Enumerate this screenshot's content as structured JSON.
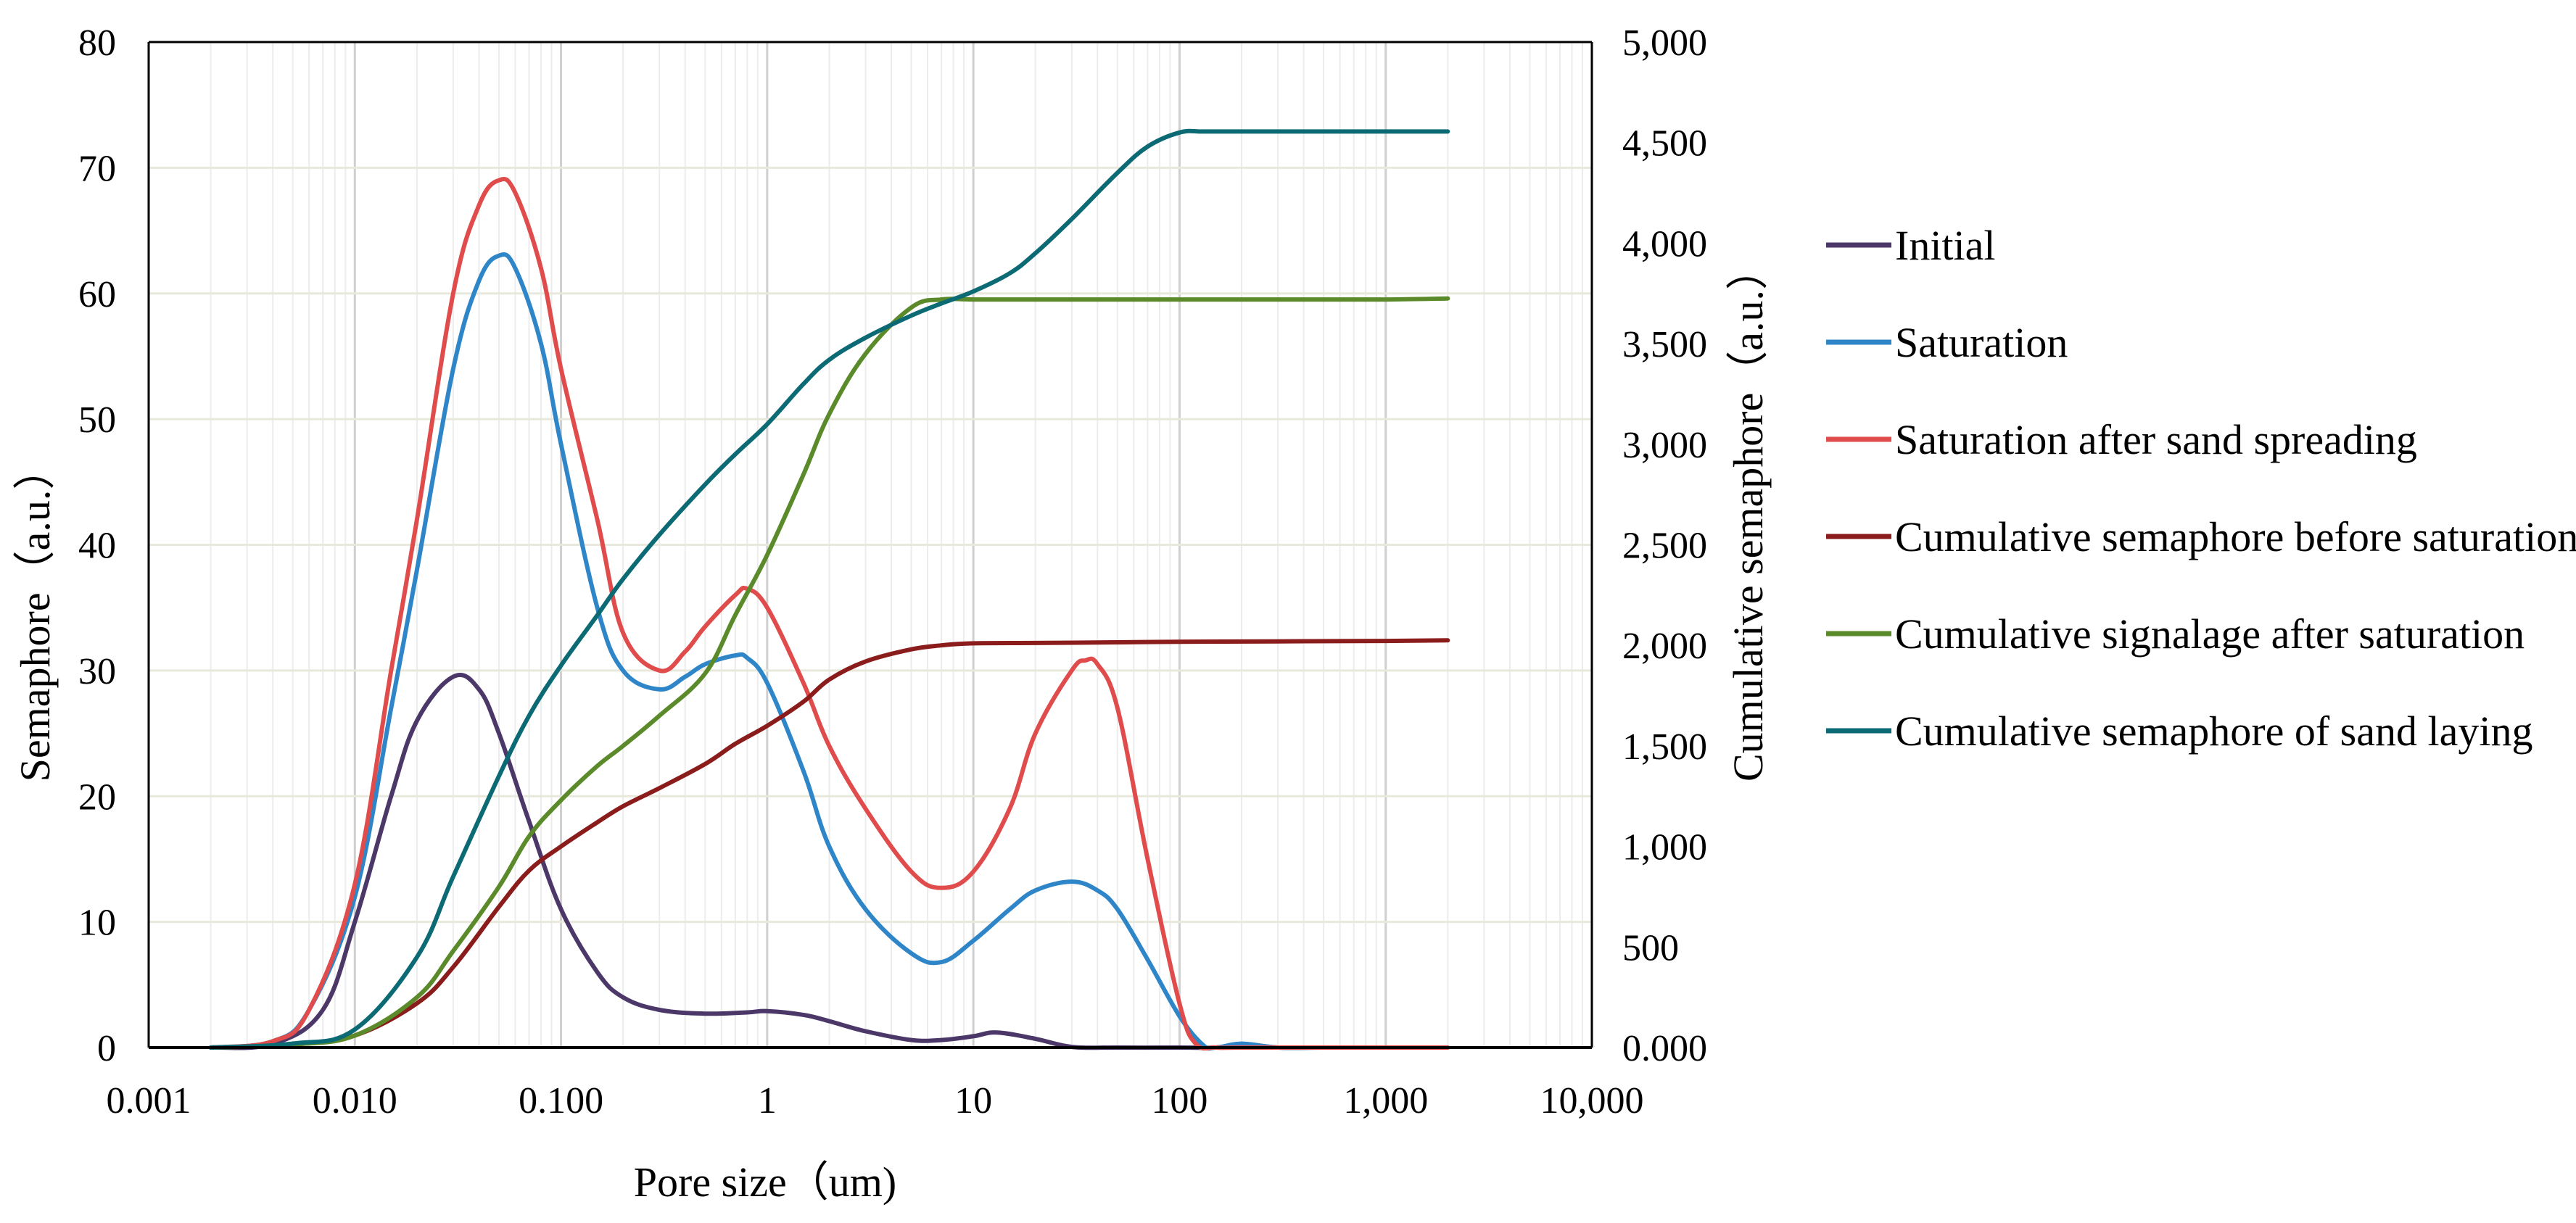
{
  "chart_data": {
    "type": "line",
    "title": "",
    "xlabel": "Pore size（um)",
    "ylabel": "Semaphore（a.u.）",
    "y2label": "Cumulative semaphore（a.u.）",
    "x_scale": "log",
    "xlim": [
      0.001,
      10000
    ],
    "ylim": [
      0,
      80
    ],
    "y2lim": [
      0,
      5000
    ],
    "x_tick_values": [
      0.001,
      0.01,
      0.1,
      1,
      10,
      100,
      1000,
      10000
    ],
    "x_tick_labels": [
      "0.001",
      "0.010",
      "0.100",
      "1",
      "10",
      "100",
      "1,000",
      "10,000"
    ],
    "y_tick_values": [
      0,
      10,
      20,
      30,
      40,
      50,
      60,
      70,
      80
    ],
    "y_tick_labels": [
      "0",
      "10",
      "20",
      "30",
      "40",
      "50",
      "60",
      "70",
      "80"
    ],
    "y2_tick_values": [
      0,
      500,
      1000,
      1500,
      2000,
      2500,
      3000,
      3500,
      4000,
      4500,
      5000
    ],
    "y2_tick_labels": [
      "0.000",
      "500",
      "1,000",
      "1,500",
      "2,000",
      "2,500",
      "3,000",
      "3,500",
      "4,000",
      "4,500",
      "5,000"
    ],
    "grid": true,
    "legend_position": "right",
    "series": [
      {
        "name": "Initial",
        "axis": "left",
        "color": "#4B3869",
        "x": [
          0.002,
          0.004,
          0.007,
          0.01,
          0.015,
          0.02,
          0.03,
          0.04,
          0.05,
          0.07,
          0.1,
          0.15,
          0.2,
          0.3,
          0.5,
          0.8,
          1,
          1.5,
          2,
          3,
          5,
          7,
          10,
          13,
          20,
          30,
          50,
          100,
          150,
          200,
          300,
          500,
          1000,
          2000
        ],
        "y": [
          0,
          0.3,
          3,
          10,
          20,
          26,
          29.5,
          28.5,
          25,
          18,
          11,
          6,
          4,
          3,
          2.7,
          2.8,
          2.9,
          2.6,
          2.1,
          1.3,
          0.6,
          0.6,
          0.9,
          1.2,
          0.7,
          0.05,
          0,
          0,
          0,
          0.3,
          0,
          0,
          0,
          0
        ]
      },
      {
        "name": "Saturation",
        "axis": "left",
        "color": "#2E86C8",
        "x": [
          0.002,
          0.004,
          0.006,
          0.01,
          0.015,
          0.02,
          0.03,
          0.04,
          0.05,
          0.06,
          0.08,
          0.1,
          0.15,
          0.2,
          0.3,
          0.4,
          0.5,
          0.7,
          0.8,
          1,
          1.5,
          2,
          3,
          5,
          7,
          10,
          15,
          20,
          30,
          40,
          50,
          70,
          100,
          130,
          150,
          200,
          300,
          500,
          1000,
          2000
        ],
        "y": [
          0,
          0.5,
          3,
          12,
          27,
          38,
          54,
          61,
          63,
          62,
          56,
          48,
          35,
          30,
          28.5,
          29.5,
          30.5,
          31.2,
          31,
          29,
          22,
          16,
          11,
          7.5,
          6.8,
          8.5,
          11,
          12.5,
          13.2,
          12.5,
          11,
          7,
          2.5,
          0.2,
          0,
          0.3,
          0,
          0,
          0,
          0
        ]
      },
      {
        "name": "Saturation after sand spreading",
        "axis": "left",
        "color": "#E04B4B",
        "x": [
          0.002,
          0.004,
          0.006,
          0.01,
          0.015,
          0.02,
          0.03,
          0.04,
          0.05,
          0.06,
          0.08,
          0.1,
          0.15,
          0.2,
          0.3,
          0.4,
          0.5,
          0.7,
          0.8,
          1,
          1.5,
          2,
          3,
          5,
          7,
          10,
          15,
          20,
          30,
          35,
          40,
          50,
          70,
          100,
          120,
          150,
          200,
          500,
          1000,
          2000
        ],
        "y": [
          0,
          0.5,
          3,
          13,
          30,
          42,
          60,
          67,
          69,
          68,
          62,
          54,
          42,
          33,
          30,
          31.5,
          33.5,
          36,
          36.5,
          35,
          29,
          24,
          19,
          14,
          12.7,
          14,
          19,
          25,
          30,
          30.8,
          30.5,
          27,
          15,
          3.5,
          0.3,
          0,
          0,
          0,
          0,
          0
        ]
      },
      {
        "name": "Cumulative semaphore before saturation",
        "axis": "right",
        "color": "#8B1C1C",
        "x": [
          0.002,
          0.005,
          0.01,
          0.02,
          0.03,
          0.05,
          0.07,
          0.1,
          0.15,
          0.2,
          0.3,
          0.5,
          0.7,
          1,
          1.5,
          2,
          3,
          5,
          7,
          10,
          20,
          50,
          100,
          300,
          1000,
          2000
        ],
        "y": [
          0,
          15,
          60,
          220,
          400,
          700,
          880,
          1000,
          1120,
          1200,
          1290,
          1410,
          1510,
          1600,
          1720,
          1830,
          1920,
          1980,
          2000,
          2010,
          2012,
          2015,
          2018,
          2020,
          2022,
          2025
        ]
      },
      {
        "name": "Cumulative signalage after saturation",
        "axis": "right",
        "color": "#5A8A2A",
        "x": [
          0.002,
          0.005,
          0.01,
          0.02,
          0.03,
          0.05,
          0.07,
          0.1,
          0.15,
          0.2,
          0.3,
          0.5,
          0.7,
          1,
          1.5,
          2,
          3,
          5,
          7,
          10,
          20,
          50,
          100,
          300,
          1000,
          2000
        ],
        "y": [
          0,
          15,
          60,
          250,
          480,
          800,
          1050,
          1230,
          1400,
          1500,
          1650,
          1860,
          2150,
          2450,
          2850,
          3150,
          3450,
          3680,
          3720,
          3720,
          3720,
          3720,
          3720,
          3720,
          3720,
          3725
        ]
      },
      {
        "name": "Cumulative semaphore of sand laying",
        "axis": "right",
        "color": "#0B6A74",
        "x": [
          0.002,
          0.005,
          0.01,
          0.02,
          0.03,
          0.05,
          0.07,
          0.1,
          0.15,
          0.2,
          0.3,
          0.5,
          0.7,
          1,
          1.5,
          2,
          3,
          5,
          7,
          10,
          15,
          20,
          30,
          50,
          70,
          100,
          130,
          200,
          500,
          1000,
          2000
        ],
        "y": [
          0,
          20,
          90,
          450,
          850,
          1350,
          1650,
          1900,
          2150,
          2330,
          2550,
          2800,
          2950,
          3100,
          3300,
          3420,
          3530,
          3640,
          3700,
          3760,
          3850,
          3950,
          4120,
          4350,
          4480,
          4550,
          4555,
          4555,
          4555,
          4555,
          4555
        ]
      }
    ]
  }
}
